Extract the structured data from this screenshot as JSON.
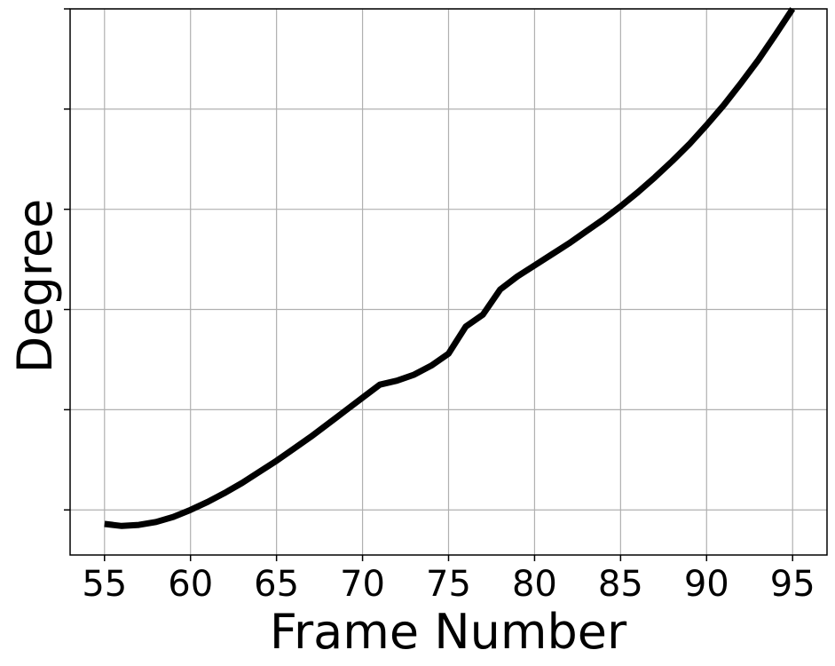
{
  "chart_data": {
    "type": "line",
    "title": "",
    "xlabel": "Frame Number",
    "ylabel": "Degree",
    "xlim": [
      53,
      97
    ],
    "ylim": [
      -0.45,
      5.0
    ],
    "xticks": [
      55,
      60,
      65,
      70,
      75,
      80,
      85,
      90,
      95
    ],
    "xtick_labels": [
      "55",
      "60",
      "65",
      "70",
      "75",
      "80",
      "85",
      "90",
      "95"
    ],
    "yticks": [
      0,
      1,
      2,
      3,
      4,
      5
    ],
    "ytick_labels": [
      "",
      "",
      "",
      "",
      "",
      ""
    ],
    "grid": true,
    "legend": "none",
    "series": [
      {
        "color": "#000000",
        "x": [
          55,
          56,
          57,
          58,
          59,
          60,
          61,
          62,
          63,
          64,
          65,
          66,
          67,
          68,
          69,
          70,
          71,
          72,
          73,
          74,
          75,
          76,
          77,
          78,
          79,
          80,
          81,
          82,
          83,
          84,
          85,
          86,
          87,
          88,
          89,
          90,
          91,
          92,
          93,
          94,
          95
        ],
        "values": [
          -0.14,
          -0.16,
          -0.15,
          -0.12,
          -0.07,
          0.0,
          0.08,
          0.17,
          0.27,
          0.38,
          0.49,
          0.61,
          0.73,
          0.86,
          0.99,
          1.12,
          1.25,
          1.29,
          1.35,
          1.44,
          1.56,
          1.83,
          1.95,
          2.2,
          2.33,
          2.44,
          2.55,
          2.66,
          2.78,
          2.9,
          3.03,
          3.17,
          3.32,
          3.48,
          3.65,
          3.84,
          4.04,
          4.26,
          4.49,
          4.74,
          5.0
        ]
      }
    ]
  }
}
